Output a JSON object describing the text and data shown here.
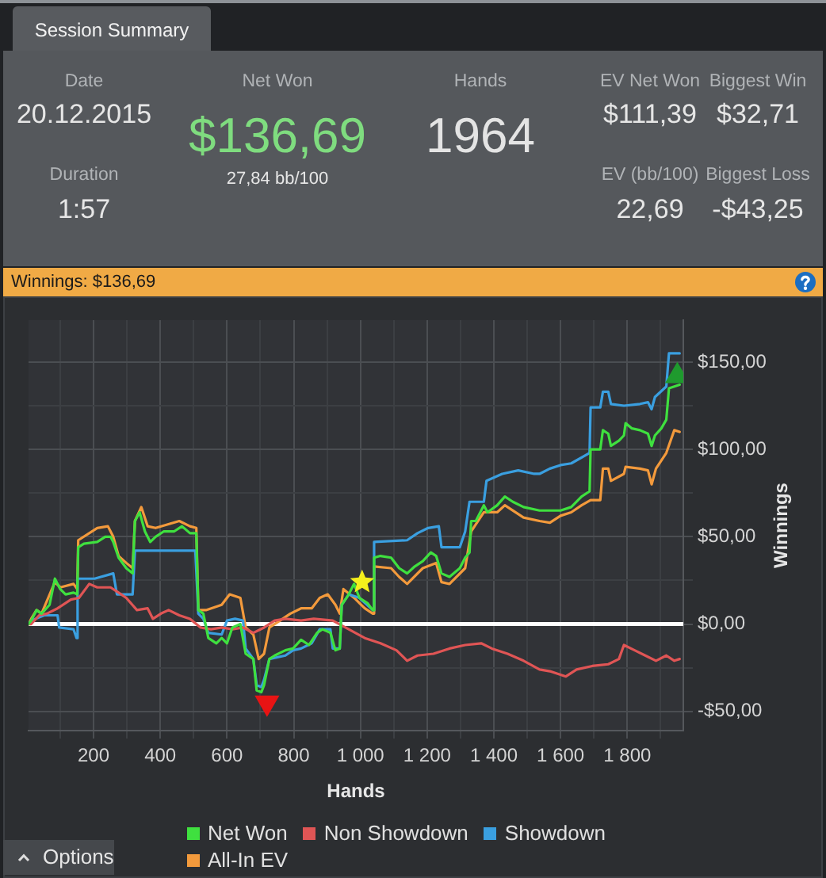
{
  "chart_data": [
    {
      "type": "other",
      "title": "Session Summary",
      "annotations": [
        "Date",
        "20.12.2015",
        "Duration",
        "1:57",
        "Net Won",
        "$136,69",
        "27,84 bb/100",
        "Hands",
        "1964",
        "EV Net Won",
        "$111,39",
        "Biggest Win",
        "$32,71",
        "EV (bb/100)",
        "22,69",
        "Biggest Loss",
        "-$43,25"
      ]
    },
    {
      "type": "line",
      "title": "Winnings: $136,69",
      "xlabel": "Hands",
      "ylabel": "Winnings",
      "xlim": [
        5,
        1968
      ],
      "ylim": [
        -61,
        174
      ],
      "xticks": [
        {
          "value": 100,
          "label": null
        },
        200,
        {
          "value": 300,
          "label": null
        },
        400,
        {
          "value": 500,
          "label": null
        },
        600,
        {
          "value": 700,
          "label": null
        },
        800,
        {
          "value": 900,
          "label": null
        },
        {
          "value": 1000,
          "label": "1 000"
        },
        {
          "value": 1100,
          "label": null
        },
        {
          "value": 1200,
          "label": "1 200"
        },
        {
          "value": 1300,
          "label": null
        },
        {
          "value": 1400,
          "label": "1 400"
        },
        {
          "value": 1500,
          "label": null
        },
        {
          "value": 1600,
          "label": "1 600"
        },
        {
          "value": 1700,
          "label": null
        },
        {
          "value": 1800,
          "label": "1 800"
        },
        {
          "value": 1900,
          "label": null
        }
      ],
      "yticks": [
        {
          "value": -50,
          "label": "-$50,00"
        },
        {
          "value": -25,
          "label": null
        },
        {
          "value": 0,
          "label": "$0,00"
        },
        {
          "value": 25,
          "label": null
        },
        {
          "value": 50,
          "label": "$50,00"
        },
        {
          "value": 75,
          "label": null
        },
        {
          "value": 100,
          "label": "$100,00"
        },
        {
          "value": 125,
          "label": null
        },
        {
          "value": 150,
          "label": "$150,00"
        }
      ],
      "grid": true,
      "legend": "bottom",
      "marker": "none",
      "series": [
        {
          "name": "Net Won",
          "color": "#3fe03f",
          "x": [
            5,
            13,
            29,
            44,
            68,
            84,
            100,
            116,
            140,
            151,
            154,
            171,
            211,
            235,
            251,
            259,
            275,
            298,
            317,
            324,
            338,
            354,
            370,
            386,
            410,
            441,
            465,
            489,
            508,
            514,
            529,
            544,
            568,
            584,
            600,
            616,
            640,
            656,
            679,
            689,
            703,
            711,
            727,
            743,
            775,
            798,
            822,
            846,
            870,
            886,
            910,
            925,
            938,
            944,
            965,
            981,
            997,
            1021,
            1037,
            1041,
            1060,
            1092,
            1116,
            1140,
            1163,
            1187,
            1211,
            1227,
            1243,
            1267,
            1298,
            1314,
            1327,
            1332,
            1346,
            1370,
            1381,
            1410,
            1433,
            1457,
            1489,
            1537,
            1568,
            1600,
            1632,
            1663,
            1687,
            1690,
            1719,
            1727,
            1743,
            1751,
            1775,
            1790,
            1795,
            1814,
            1838,
            1862,
            1873,
            1883,
            1902,
            1917,
            1925,
            1957
          ],
          "values": [
            0,
            2,
            8,
            6,
            11,
            26,
            20,
            17,
            18,
            17,
            44,
            46,
            47,
            50,
            50,
            47,
            38,
            32,
            29,
            59,
            64,
            53,
            47,
            50,
            53,
            53,
            56,
            52,
            52,
            8,
            6,
            -8,
            -11,
            -8,
            -11,
            -2,
            0,
            -17,
            -20,
            -38,
            -39,
            -35,
            -20,
            -18,
            -15,
            -14,
            -9,
            -12,
            -5,
            -3,
            -5,
            -15,
            -14,
            11,
            17,
            23,
            15,
            12,
            8,
            38,
            39,
            38,
            32,
            29,
            33,
            36,
            41,
            39,
            29,
            27,
            32,
            38,
            41,
            59,
            59,
            68,
            64,
            68,
            73,
            70,
            67,
            65,
            65,
            65,
            67,
            73,
            76,
            100,
            100,
            111,
            109,
            102,
            105,
            108,
            115,
            112,
            111,
            109,
            102,
            108,
            112,
            117,
            135,
            137
          ]
        },
        {
          "name": "Non Showdown",
          "color": "#e05555",
          "x": [
            5,
            13,
            37,
            60,
            92,
            132,
            156,
            187,
            211,
            251,
            275,
            298,
            330,
            362,
            378,
            402,
            425,
            457,
            489,
            521,
            552,
            584,
            616,
            648,
            679,
            711,
            743,
            775,
            822,
            860,
            917,
            965,
            1013,
            1060,
            1108,
            1140,
            1171,
            1219,
            1267,
            1314,
            1362,
            1394,
            1441,
            1489,
            1537,
            1568,
            1616,
            1648,
            1695,
            1743,
            1775,
            1790,
            1822,
            1854,
            1886,
            1917,
            1941,
            1957
          ],
          "values": [
            0,
            0,
            5,
            6,
            9,
            14,
            15,
            23,
            21,
            21,
            18,
            15,
            8,
            9,
            3,
            6,
            8,
            5,
            3,
            -2,
            -3,
            -2,
            -3,
            -2,
            -5,
            -2,
            2,
            3,
            2,
            3,
            2,
            -3,
            -8,
            -11,
            -15,
            -21,
            -18,
            -17,
            -14,
            -12,
            -11,
            -14,
            -17,
            -21,
            -26,
            -27,
            -30,
            -26,
            -24,
            -23,
            -20,
            -12,
            -15,
            -18,
            -21,
            -18,
            -21,
            -20
          ]
        },
        {
          "name": "Showdown",
          "color": "#3a9fe0",
          "x": [
            5,
            13,
            52,
            92,
            97,
            140,
            149,
            152,
            203,
            259,
            270,
            317,
            324,
            505,
            514,
            529,
            544,
            584,
            600,
            624,
            648,
            656,
            679,
            689,
            703,
            711,
            727,
            775,
            798,
            822,
            854,
            878,
            910,
            917,
            938,
            944,
            965,
            997,
            1037,
            1041,
            1140,
            1171,
            1203,
            1235,
            1243,
            1298,
            1314,
            1327,
            1370,
            1378,
            1425,
            1473,
            1521,
            1537,
            1568,
            1600,
            1632,
            1687,
            1690,
            1719,
            1727,
            1743,
            1751,
            1790,
            1838,
            1862,
            1873,
            1883,
            1917,
            1925,
            1957
          ],
          "values": [
            0,
            2,
            5,
            5,
            -2,
            -3,
            -8,
            26,
            26,
            29,
            17,
            17,
            42,
            42,
            6,
            3,
            -5,
            -6,
            2,
            3,
            2,
            -14,
            -20,
            -35,
            -36,
            -32,
            -20,
            -18,
            -15,
            -14,
            -11,
            -3,
            -3,
            -14,
            -14,
            11,
            17,
            15,
            8,
            47,
            48,
            52,
            55,
            56,
            44,
            44,
            53,
            70,
            70,
            82,
            86,
            88,
            86,
            86,
            89,
            91,
            92,
            98,
            124,
            124,
            133,
            133,
            126,
            125,
            126,
            127,
            123,
            130,
            136,
            155,
            155
          ]
        },
        {
          "name": "All-In EV",
          "color": "#f39a3c",
          "x": [
            5,
            13,
            29,
            44,
            84,
            100,
            140,
            151,
            154,
            211,
            243,
            259,
            275,
            298,
            317,
            324,
            343,
            362,
            386,
            457,
            489,
            508,
            514,
            537,
            584,
            608,
            640,
            656,
            679,
            695,
            711,
            727,
            759,
            790,
            822,
            854,
            878,
            902,
            925,
            938,
            949,
            981,
            1013,
            1037,
            1041,
            1092,
            1116,
            1140,
            1187,
            1227,
            1243,
            1267,
            1314,
            1332,
            1370,
            1410,
            1433,
            1489,
            1537,
            1568,
            1600,
            1632,
            1663,
            1690,
            1719,
            1727,
            1743,
            1751,
            1790,
            1795,
            1838,
            1862,
            1873,
            1886,
            1917,
            1941,
            1957
          ],
          "values": [
            0,
            3,
            8,
            6,
            24,
            21,
            23,
            20,
            48,
            55,
            56,
            50,
            39,
            35,
            32,
            59,
            67,
            56,
            55,
            59,
            56,
            55,
            8,
            8,
            11,
            17,
            15,
            -2,
            -6,
            -20,
            -17,
            -2,
            2,
            6,
            9,
            9,
            15,
            17,
            11,
            6,
            20,
            15,
            9,
            6,
            33,
            32,
            27,
            23,
            32,
            35,
            24,
            23,
            32,
            53,
            64,
            64,
            68,
            61,
            59,
            58,
            62,
            64,
            68,
            71,
            71,
            89,
            89,
            82,
            86,
            90,
            89,
            88,
            80,
            89,
            98,
            111,
            110
          ]
        },
        {
          "type": "scatter",
          "marker": "triangle",
          "color": "#e81414",
          "x": [
            720
          ],
          "values": [
            -45
          ]
        },
        {
          "type": "scatter",
          "marker": "triangle",
          "color": "#1f9a2e",
          "x": [
            1950
          ],
          "values": [
            142
          ]
        },
        {
          "type": "scatter",
          "marker": "star",
          "color": "#f4ef1c",
          "x": [
            1005
          ],
          "values": [
            24
          ]
        }
      ],
      "ref_lines": [
        {
          "axis": "y",
          "value": 0,
          "color": "#ffffff"
        }
      ],
      "annotations": [
        "Options"
      ]
    }
  ]
}
